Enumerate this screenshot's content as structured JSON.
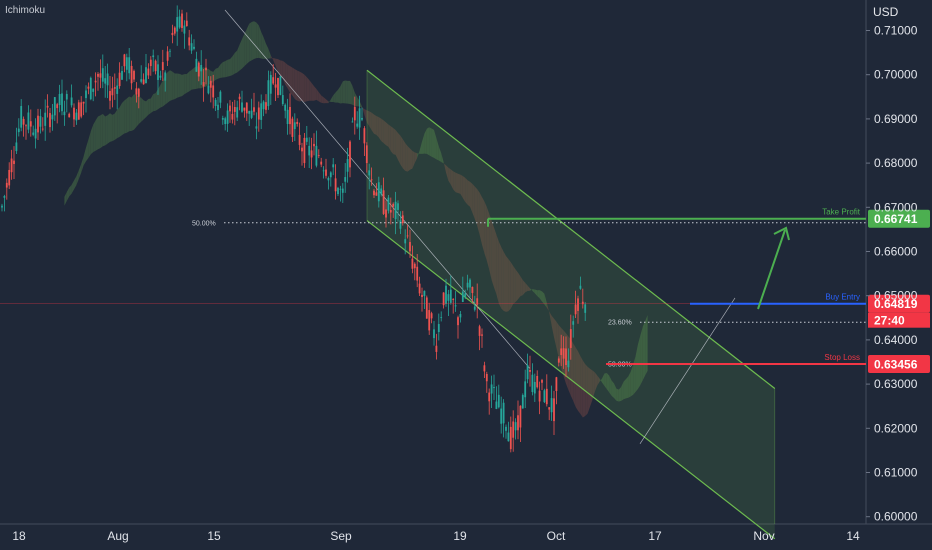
{
  "indicator": "Ichimoku",
  "currency": "USD",
  "colors": {
    "background": "#1f2838",
    "up": "#26a69a",
    "down": "#ef5350",
    "channel": "#6dbb4f",
    "take_profit": "#4caf50",
    "entry": "#2962ff",
    "stop_loss": "#f23645",
    "price_tag": "#f23645",
    "cloud_bull": "#3f5e43",
    "cloud_bear": "#5a3c40"
  },
  "chart_data": {
    "type": "candlestick",
    "ylim": [
      0.6,
      0.715
    ],
    "y_ticks": [
      "0.71000",
      "0.70000",
      "0.69000",
      "0.68000",
      "0.67000",
      "0.66000",
      "0.65000",
      "0.64000",
      "0.63000",
      "0.62000",
      "0.61000",
      "0.60000"
    ],
    "x_ticks": [
      "18",
      "Aug",
      "15",
      "Sep",
      "19",
      "Oct",
      "17",
      "Nov",
      "14"
    ],
    "price_path": [
      [
        0,
        0.67
      ],
      [
        8,
        0.69
      ],
      [
        15,
        0.688
      ],
      [
        25,
        0.694
      ],
      [
        32,
        0.692
      ],
      [
        40,
        0.7
      ],
      [
        46,
        0.696
      ],
      [
        52,
        0.703
      ],
      [
        56,
        0.697
      ],
      [
        62,
        0.702
      ],
      [
        68,
        0.7
      ],
      [
        72,
        0.71
      ],
      [
        76,
        0.712
      ],
      [
        82,
        0.702
      ],
      [
        88,
        0.697
      ],
      [
        94,
        0.69
      ],
      [
        100,
        0.694
      ],
      [
        106,
        0.689
      ],
      [
        114,
        0.7
      ],
      [
        120,
        0.69
      ],
      [
        126,
        0.683
      ],
      [
        132,
        0.682
      ],
      [
        138,
        0.677
      ],
      [
        142,
        0.672
      ],
      [
        145,
        0.682
      ],
      [
        147,
        0.691
      ],
      [
        150,
        0.69
      ],
      [
        154,
        0.676
      ],
      [
        160,
        0.67
      ],
      [
        166,
        0.668
      ],
      [
        170,
        0.66
      ],
      [
        174,
        0.652
      ],
      [
        178,
        0.645
      ],
      [
        181,
        0.64
      ],
      [
        184,
        0.65
      ],
      [
        188,
        0.648
      ],
      [
        190,
        0.645
      ],
      [
        194,
        0.652
      ],
      [
        198,
        0.648
      ],
      [
        202,
        0.63
      ],
      [
        206,
        0.626
      ],
      [
        210,
        0.622
      ],
      [
        212,
        0.618
      ],
      [
        215,
        0.62
      ],
      [
        219,
        0.632
      ],
      [
        222,
        0.63
      ],
      [
        226,
        0.628
      ],
      [
        230,
        0.624
      ],
      [
        233,
        0.638
      ],
      [
        236,
        0.636
      ],
      [
        239,
        0.648
      ],
      [
        241,
        0.651
      ],
      [
        243,
        0.649
      ]
    ],
    "channel": {
      "upper": [
        [
          0.3,
          0.701
        ],
        [
          0.62,
          0.629
        ]
      ],
      "lower": [
        [
          0.3,
          0.667
        ],
        [
          0.62,
          0.595
        ]
      ]
    },
    "fibonacci": [
      {
        "label": "50.00%",
        "value": 0.6665
      },
      {
        "label": "23.60%",
        "value": 0.644
      },
      {
        "label": "50.00%",
        "value": 0.6345
      }
    ],
    "levels": [
      {
        "name": "Take Profit",
        "value": "0.66741",
        "color": "#4caf50"
      },
      {
        "name": "Buy Entry",
        "value": "0.64819",
        "color": "#2962ff",
        "countdown": "27:40"
      },
      {
        "name": "Stop Loss",
        "value": "0.63456",
        "color": "#f23645"
      }
    ],
    "current_price": "0.64819",
    "grid": false
  }
}
